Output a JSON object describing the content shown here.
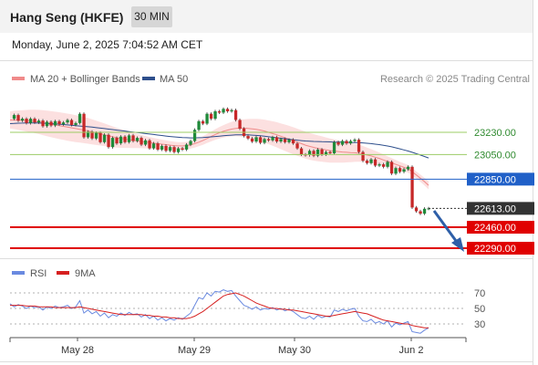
{
  "header": {
    "title": "Hang Seng (HKFE)",
    "timeframe": "30 MIN",
    "datetime": "Monday, June 2, 2025 7:04:52 AM CET"
  },
  "legend": {
    "ma20": "MA 20 + Bollinger Bands",
    "ma50": "MA 50",
    "rsi": "RSI",
    "rsi_ma": "9MA",
    "credit": "Research © 2025 Trading Central"
  },
  "colors": {
    "up": "#1f8a3a",
    "down": "#c62828",
    "band_fill": "#fbd6d6",
    "ma20": "#f08a8a",
    "ma50": "#2e4f8c",
    "resistance": "#9ccc65",
    "pivot": "#2060c8",
    "support": "#e00000",
    "current": "#333333",
    "rsi": "#6a8ae0",
    "rsi_ma": "#d62020",
    "arrow": "#2e5fa8"
  },
  "chart_data": [
    {
      "type": "line",
      "title": "Hang Seng (HKFE)",
      "x_labels": [
        "May 28",
        "May 29",
        "May 30",
        "Jun 2"
      ],
      "ylim": [
        22200,
        23500
      ],
      "series": [
        {
          "name": "Price",
          "values": [
            23340,
            23370,
            23325,
            23340,
            23305,
            23340,
            23310,
            23325,
            23280,
            23315,
            23285,
            23320,
            23295,
            23310,
            23330,
            23290,
            23305,
            23380,
            23190,
            23235,
            23180,
            23225,
            23150,
            23210,
            23110,
            23185,
            23140,
            23195,
            23150,
            23205,
            23160,
            23185,
            23130,
            23165,
            23100,
            23140,
            23090,
            23120,
            23080,
            23110,
            23070,
            23100,
            23090,
            23130,
            23160,
            23250,
            23320,
            23300,
            23380,
            23340,
            23400,
            23390,
            23420,
            23400,
            23410,
            23330,
            23260,
            23200,
            23180,
            23155,
            23190,
            23145,
            23175,
            23165,
            23190,
            23155,
            23175,
            23150,
            23170,
            23140,
            23100,
            23050,
            23045,
            23080,
            23040,
            23090,
            23050,
            23070,
            23060,
            23150,
            23130,
            23160,
            23140,
            23160,
            23170,
            23070,
            23000,
            22980,
            23010,
            22960,
            22970,
            22950,
            22990,
            22895,
            22940,
            22910,
            22930,
            22950,
            22620,
            22590,
            22570,
            22610,
            22613
          ]
        },
        {
          "name": "MA 20",
          "values": [
            23330,
            23330,
            23328,
            23326,
            23324,
            23322,
            23318,
            23314,
            23308,
            23302,
            23296,
            23290,
            23284,
            23278,
            23272,
            23266,
            23260,
            23254,
            23248,
            23242,
            23234,
            23226,
            23218,
            23210,
            23202,
            23194,
            23186,
            23180,
            23175,
            23170,
            23165,
            23160,
            23155,
            23150,
            23146,
            23142,
            23138,
            23134,
            23130,
            23126,
            23122,
            23120,
            23120,
            23122,
            23128,
            23138,
            23150,
            23164,
            23180,
            23196,
            23212,
            23226,
            23238,
            23248,
            23256,
            23262,
            23264,
            23264,
            23262,
            23258,
            23254,
            23248,
            23240,
            23230,
            23220,
            23210,
            23198,
            23186,
            23174,
            23162,
            23150,
            23138,
            23126,
            23116,
            23108,
            23100,
            23094,
            23088,
            23082,
            23078,
            23074,
            23070,
            23068,
            23066,
            23064,
            23060,
            23054,
            23046,
            23038,
            23028,
            23018,
            23006,
            22994,
            22982,
            22970,
            22958,
            22946,
            22934,
            22910,
            22884,
            22858,
            22830,
            22800
          ]
        },
        {
          "name": "MA 50",
          "values": [
            23300,
            23302,
            23304,
            23305,
            23306,
            23306,
            23306,
            23305,
            23304,
            23302,
            23300,
            23298,
            23296,
            23293,
            23290,
            23287,
            23284,
            23281,
            23278,
            23275,
            23272,
            23268,
            23264,
            23260,
            23256,
            23252,
            23248,
            23244,
            23240,
            23236,
            23232,
            23228,
            23224,
            23220,
            23216,
            23212,
            23208,
            23204,
            23200,
            23196,
            23193,
            23190,
            23188,
            23186,
            23185,
            23185,
            23186,
            23188,
            23190,
            23193,
            23196,
            23199,
            23202,
            23205,
            23207,
            23209,
            23210,
            23210,
            23209,
            23207,
            23205,
            23202,
            23198,
            23194,
            23190,
            23186,
            23182,
            23178,
            23174,
            23170,
            23166,
            23163,
            23160,
            23158,
            23156,
            23155,
            23154,
            23153,
            23152,
            23151,
            23150,
            23150,
            23149,
            23148,
            23147,
            23146,
            23144,
            23141,
            23138,
            23134,
            23130,
            23125,
            23119,
            23112,
            23104,
            23096,
            23087,
            23078,
            23068,
            23057,
            23046,
            23034,
            23022
          ]
        }
      ],
      "levels": [
        {
          "value": 23230,
          "label": "23230.00",
          "kind": "resistance"
        },
        {
          "value": 23050,
          "label": "23050.00",
          "kind": "resistance"
        },
        {
          "value": 22850,
          "label": "22850.00",
          "kind": "pivot"
        },
        {
          "value": 22613,
          "label": "22613.00",
          "kind": "current"
        },
        {
          "value": 22460,
          "label": "22460.00",
          "kind": "support"
        },
        {
          "value": 22290,
          "label": "22290.00",
          "kind": "support"
        }
      ]
    },
    {
      "type": "line",
      "title": "RSI",
      "ylim": [
        10,
        80
      ],
      "y_ticks": [
        70,
        50,
        30
      ],
      "x_labels": [
        "May 28",
        "May 29",
        "May 30",
        "Jun 2"
      ],
      "series": [
        {
          "name": "RSI",
          "values": [
            56,
            52,
            55,
            53,
            50,
            53,
            51,
            52,
            48,
            52,
            50,
            53,
            51,
            52,
            54,
            50,
            52,
            60,
            44,
            48,
            43,
            46,
            40,
            44,
            38,
            42,
            40,
            44,
            41,
            45,
            42,
            43,
            39,
            42,
            37,
            40,
            35,
            38,
            34,
            37,
            35,
            38,
            36,
            40,
            44,
            54,
            64,
            62,
            70,
            66,
            72,
            71,
            74,
            72,
            73,
            66,
            60,
            54,
            52,
            49,
            52,
            48,
            50,
            49,
            51,
            48,
            50,
            47,
            49,
            46,
            42,
            38,
            37,
            40,
            36,
            41,
            38,
            40,
            39,
            48,
            46,
            49,
            47,
            49,
            50,
            40,
            34,
            33,
            36,
            31,
            33,
            30,
            34,
            26,
            31,
            29,
            31,
            33,
            20,
            19,
            18,
            22,
            25
          ]
        },
        {
          "name": "9MA",
          "values": [
            54,
            54,
            54,
            54,
            53,
            53,
            53,
            52,
            52,
            52,
            52,
            51,
            51,
            51,
            51,
            51,
            51,
            52,
            51,
            50,
            49,
            48,
            47,
            46,
            45,
            44,
            43,
            42,
            42,
            42,
            42,
            42,
            42,
            41,
            41,
            40,
            40,
            39,
            39,
            38,
            38,
            37,
            37,
            37,
            38,
            40,
            43,
            46,
            50,
            54,
            58,
            62,
            66,
            68,
            69,
            70,
            68,
            66,
            63,
            60,
            57,
            55,
            53,
            51,
            50,
            50,
            49,
            49,
            48,
            48,
            47,
            46,
            45,
            44,
            43,
            42,
            41,
            40,
            40,
            41,
            42,
            43,
            44,
            45,
            46,
            45,
            44,
            43,
            41,
            39,
            37,
            35,
            34,
            33,
            32,
            31,
            30,
            30,
            28,
            27,
            26,
            25,
            25
          ]
        }
      ]
    }
  ]
}
